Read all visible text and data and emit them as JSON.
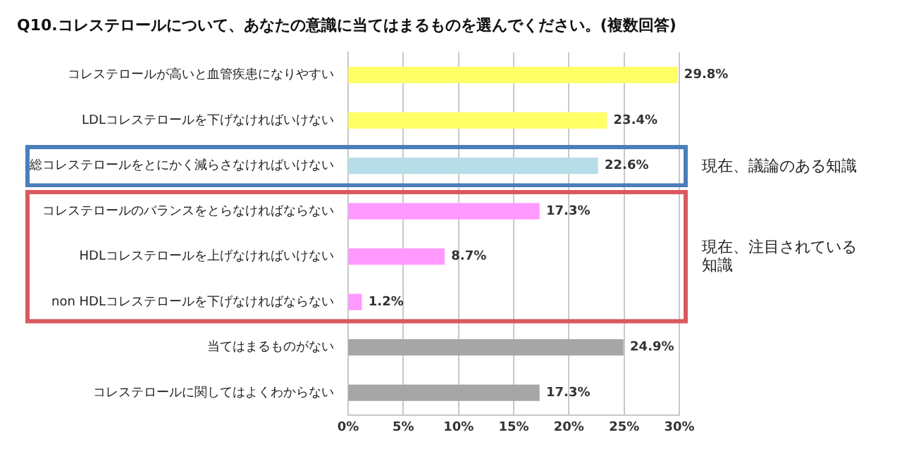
{
  "chart_data": {
    "type": "bar",
    "orientation": "horizontal",
    "title": "Q10.コレステロールについて、あなたの意識に当てはまるものを選んでください。(複数回答)",
    "categories": [
      "コレステロールが高いと血管疾患になりやすい",
      "LDLコレステロールを下げなければいけない",
      "総コレステロールをとにかく減らさなければいけない",
      "コレステロールのバランスをとらなければならない",
      "HDLコレステロールを上げなければいけない",
      "non HDLコレステロールを下げなければならない",
      "当てはまるものがない",
      "コレステロールに関してはよくわからない"
    ],
    "values": [
      29.8,
      23.4,
      22.6,
      17.3,
      8.7,
      1.2,
      24.9,
      17.3
    ],
    "colors": [
      "#ffff66",
      "#ffff66",
      "#b7dde8",
      "#ff99ff",
      "#ff99ff",
      "#ff99ff",
      "#a6a6a6",
      "#a6a6a6"
    ],
    "value_labels": [
      "29.8%",
      "23.4%",
      "22.6%",
      "17.3%",
      "8.7%",
      "1.2%",
      "24.9%",
      "17.3%"
    ],
    "xlim": [
      0,
      30
    ],
    "xticks": [
      {
        "value": 0,
        "label": "0%"
      },
      {
        "value": 5,
        "label": "5%"
      },
      {
        "value": 10,
        "label": "10%"
      },
      {
        "value": 15,
        "label": "15%"
      },
      {
        "value": 20,
        "label": "20%"
      },
      {
        "value": 25,
        "label": "25%"
      },
      {
        "value": 30,
        "label": "30%"
      }
    ],
    "grid": "x",
    "annotations": [
      "現在、議論のある知識",
      "現在、注目されている知識"
    ]
  }
}
